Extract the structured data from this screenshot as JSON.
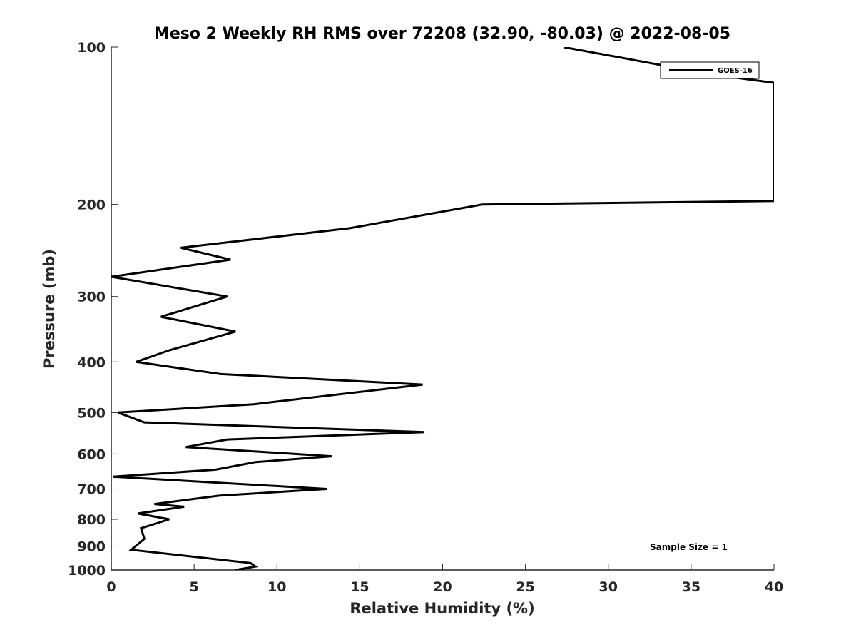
{
  "chart_data": {
    "type": "line",
    "title": "Meso 2 Weekly RH RMS over 72208 (32.90, -80.03) @ 2022-08-05",
    "xlabel": "Relative Humidity (%)",
    "ylabel": "Pressure (mb)",
    "xlim": [
      0,
      40
    ],
    "ylim": [
      1000,
      100
    ],
    "yscale": "log",
    "xticks": [
      0,
      5,
      10,
      15,
      20,
      25,
      30,
      35,
      40
    ],
    "xtick_labels": [
      "0",
      "5",
      "10",
      "15",
      "20",
      "25",
      "30",
      "35",
      "40"
    ],
    "yticks": [
      100,
      200,
      300,
      400,
      500,
      600,
      700,
      800,
      900,
      1000
    ],
    "ytick_labels": [
      "100",
      "200",
      "300",
      "400",
      "500",
      "600",
      "700",
      "800",
      "900",
      "1000"
    ],
    "grid": false,
    "legend_position": "top-right",
    "series": [
      {
        "name": "GOES-16",
        "color": "#000000",
        "x": [
          27.3,
          36.4,
          40,
          40,
          22.4,
          14.4,
          4.2,
          7.2,
          0,
          7.0,
          3.0,
          7.5,
          3.5,
          1.5,
          6.6,
          18.8,
          8.6,
          0.4,
          2.0,
          18.9,
          7.0,
          4.5,
          13.3,
          8.7,
          6.3,
          0.1,
          13.0,
          6.5,
          2.6,
          4.4,
          1.6,
          3.5,
          1.8,
          2.0,
          1.2,
          8.4,
          8.7,
          7.5
        ],
        "y": [
          100,
          113,
          117,
          197,
          200,
          222,
          242,
          255,
          275,
          300,
          328,
          350,
          380,
          400,
          422,
          442,
          482,
          500,
          522,
          545,
          563,
          582,
          606,
          622,
          643,
          663,
          700,
          721,
          748,
          757,
          780,
          800,
          832,
          872,
          915,
          970,
          985,
          1000
        ]
      }
    ],
    "annotations": [
      "Sample Size = 1"
    ]
  }
}
